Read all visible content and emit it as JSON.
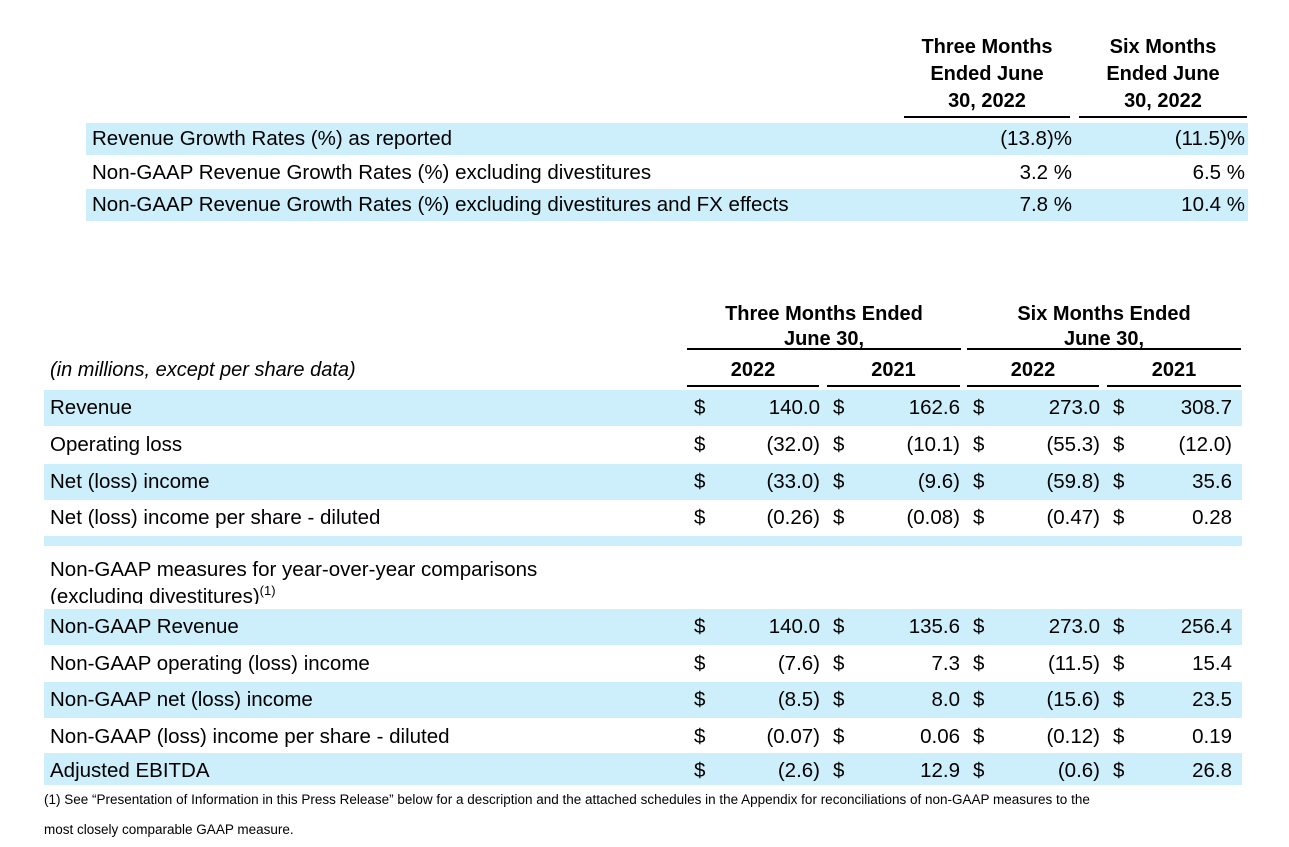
{
  "growth_table": {
    "headers": [
      {
        "line1": "Three Months",
        "line2": "Ended June",
        "line3": "30, 2022"
      },
      {
        "line1": "Six Months",
        "line2": "Ended June",
        "line3": "30, 2022"
      }
    ],
    "rows": [
      {
        "label": "Revenue Growth Rates (%) as reported",
        "three_months": "(13.8)%",
        "six_months": "(11.5)%"
      },
      {
        "label": "Non-GAAP Revenue Growth Rates (%) excluding divestitures",
        "three_months": "3.2 %",
        "six_months": "6.5 %"
      },
      {
        "label": "Non-GAAP Revenue Growth Rates (%) excluding divestitures and FX effects",
        "three_months": "7.8 %",
        "six_months": "10.4 %"
      }
    ]
  },
  "financial_table": {
    "unit_note": "(in millions, except per share data)",
    "groups": [
      {
        "line1": "Three Months  Ended",
        "line2": "June 30,"
      },
      {
        "line1": "Six Months Ended",
        "line2": "June 30,"
      }
    ],
    "years": [
      "2022",
      "2021",
      "2022",
      "2021"
    ],
    "currency": "$",
    "gaap_rows": [
      {
        "label": "Revenue",
        "values": [
          "140.0",
          "162.6",
          "273.0",
          "308.7"
        ]
      },
      {
        "label": "Operating loss",
        "values": [
          "(32.0)",
          "(10.1)",
          "(55.3)",
          "(12.0)"
        ]
      },
      {
        "label": "Net (loss) income",
        "values": [
          "(33.0)",
          "(9.6)",
          "(59.8)",
          "35.6"
        ]
      },
      {
        "label": "Net (loss) income per share - diluted",
        "values": [
          "(0.26)",
          "(0.08)",
          "(0.47)",
          "0.28"
        ]
      }
    ],
    "section": {
      "line1": "Non-GAAP measures for year-over-year comparisons",
      "line2": "(excluding divestitures)",
      "footnote_ref": "(1)"
    },
    "non_gaap_rows": [
      {
        "label": "Non-GAAP Revenue",
        "values": [
          "140.0",
          "135.6",
          "273.0",
          "256.4"
        ]
      },
      {
        "label": "Non-GAAP operating (loss) income",
        "values": [
          "(7.6)",
          "7.3",
          "(11.5)",
          "15.4"
        ]
      },
      {
        "label": "Non-GAAP net (loss) income",
        "values": [
          "(8.5)",
          "8.0",
          "(15.6)",
          "23.5"
        ]
      },
      {
        "label": "Non-GAAP (loss) income per share - diluted",
        "values": [
          "(0.07)",
          "0.06",
          "(0.12)",
          "0.19"
        ]
      },
      {
        "label": "Adjusted EBITDA",
        "values": [
          "(2.6)",
          "12.9",
          "(0.6)",
          "26.8"
        ]
      }
    ]
  },
  "footnote": {
    "line1": "(1) See “Presentation of Information in this Press Release” below for a description and the attached schedules in the Appendix for reconciliations of non-GAAP measures to the",
    "line2": "most closely comparable GAAP measure."
  }
}
